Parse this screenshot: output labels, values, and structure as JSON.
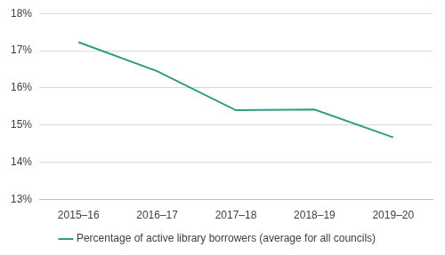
{
  "chart_data": {
    "type": "line",
    "categories": [
      "2015–16",
      "2016–17",
      "2017–18",
      "2018–19",
      "2019–20"
    ],
    "series": [
      {
        "name": "Percentage of active library borrowers (average for all councils)",
        "color": "#2e9c85",
        "values": [
          17.23,
          16.45,
          15.4,
          15.42,
          14.67
        ]
      }
    ],
    "ylim": [
      13,
      18
    ],
    "yticks": [
      {
        "value": 13,
        "label": "13%"
      },
      {
        "value": 14,
        "label": "14%"
      },
      {
        "value": 15,
        "label": "15%"
      },
      {
        "value": 16,
        "label": "16%"
      },
      {
        "value": 17,
        "label": "17%"
      },
      {
        "value": 18,
        "label": "18%"
      }
    ],
    "grid": true,
    "legend": "bottom"
  }
}
